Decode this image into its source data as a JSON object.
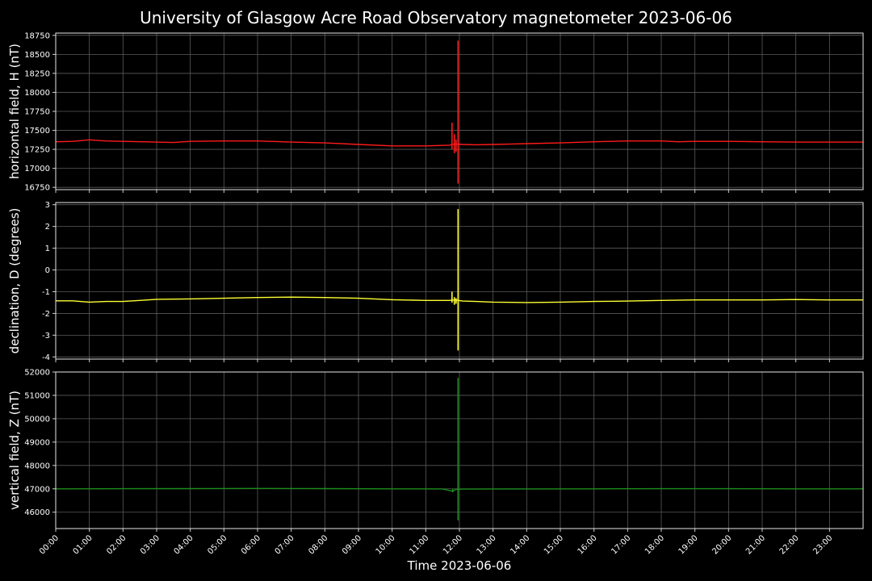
{
  "chart_data": {
    "type": "line",
    "title": "University of Glasgow Acre Road Observatory magnetometer 2023-06-06",
    "xlabel": "Time 2023-06-06",
    "x_ticks": [
      "00:00",
      "01:00",
      "02:00",
      "03:00",
      "04:00",
      "05:00",
      "06:00",
      "07:00",
      "08:00",
      "09:00",
      "10:00",
      "11:00",
      "12:00",
      "13:00",
      "14:00",
      "15:00",
      "16:00",
      "17:00",
      "18:00",
      "19:00",
      "20:00",
      "21:00",
      "22:00",
      "23:00"
    ],
    "xlim_hours": [
      0,
      24
    ],
    "grid": true,
    "panels": [
      {
        "ylabel": "horizontal field, H (nT)",
        "color": "#ff1a1a",
        "ylim": [
          16720,
          18780
        ],
        "yticks": [
          16750,
          17000,
          17250,
          17500,
          17750,
          18000,
          18250,
          18500,
          18750
        ],
        "baseline": [
          [
            0,
            17350
          ],
          [
            0.5,
            17355
          ],
          [
            1,
            17375
          ],
          [
            1.5,
            17360
          ],
          [
            2,
            17355
          ],
          [
            3,
            17345
          ],
          [
            3.5,
            17340
          ],
          [
            4,
            17355
          ],
          [
            5,
            17360
          ],
          [
            6,
            17360
          ],
          [
            7,
            17345
          ],
          [
            8,
            17335
          ],
          [
            9,
            17315
          ],
          [
            10,
            17295
          ],
          [
            11,
            17295
          ],
          [
            11.7,
            17305
          ],
          [
            11.85,
            17320
          ],
          [
            12.1,
            17315
          ],
          [
            12.5,
            17310
          ],
          [
            13,
            17315
          ],
          [
            14,
            17325
          ],
          [
            15,
            17335
          ],
          [
            16,
            17350
          ],
          [
            17,
            17360
          ],
          [
            18,
            17360
          ],
          [
            18.5,
            17350
          ],
          [
            19,
            17355
          ],
          [
            20,
            17355
          ],
          [
            21,
            17350
          ],
          [
            22,
            17345
          ],
          [
            23,
            17345
          ],
          [
            24,
            17345
          ]
        ],
        "spikes": [
          [
            11.78,
            17250,
            17600
          ],
          [
            11.85,
            17200,
            17450
          ],
          [
            11.9,
            17220,
            17380
          ],
          [
            11.96,
            16800,
            18680
          ]
        ]
      },
      {
        "ylabel": "declination, D (degrees)",
        "color": "#ffff33",
        "ylim": [
          -4.1,
          3.1
        ],
        "yticks": [
          -4,
          -3,
          -2,
          -1,
          0,
          1,
          2,
          3
        ],
        "baseline": [
          [
            0,
            -1.42
          ],
          [
            0.5,
            -1.42
          ],
          [
            1,
            -1.48
          ],
          [
            1.5,
            -1.45
          ],
          [
            2,
            -1.45
          ],
          [
            2.5,
            -1.4
          ],
          [
            3,
            -1.35
          ],
          [
            4,
            -1.33
          ],
          [
            5,
            -1.3
          ],
          [
            6,
            -1.27
          ],
          [
            7,
            -1.25
          ],
          [
            8,
            -1.27
          ],
          [
            9,
            -1.3
          ],
          [
            10,
            -1.37
          ],
          [
            11,
            -1.4
          ],
          [
            11.7,
            -1.4
          ],
          [
            11.85,
            -1.38
          ],
          [
            12.1,
            -1.43
          ],
          [
            12.5,
            -1.45
          ],
          [
            13,
            -1.48
          ],
          [
            14,
            -1.5
          ],
          [
            15,
            -1.48
          ],
          [
            16,
            -1.45
          ],
          [
            17,
            -1.43
          ],
          [
            18,
            -1.4
          ],
          [
            19,
            -1.38
          ],
          [
            20,
            -1.38
          ],
          [
            21,
            -1.38
          ],
          [
            22,
            -1.36
          ],
          [
            23,
            -1.38
          ],
          [
            24,
            -1.38
          ]
        ],
        "spikes": [
          [
            11.78,
            -1.5,
            -1.0
          ],
          [
            11.85,
            -1.6,
            -1.25
          ],
          [
            11.9,
            -1.55,
            -1.3
          ],
          [
            11.96,
            -3.7,
            2.8
          ]
        ]
      },
      {
        "ylabel": "vertical field, Z (nT)",
        "color": "#1a8c1a",
        "ylim": [
          45300,
          52000
        ],
        "yticks": [
          46000,
          47000,
          48000,
          49000,
          50000,
          51000,
          52000
        ],
        "baseline": [
          [
            0,
            47000
          ],
          [
            2,
            47005
          ],
          [
            4,
            47010
          ],
          [
            6,
            47015
          ],
          [
            8,
            47010
          ],
          [
            10,
            47000
          ],
          [
            11.5,
            46995
          ],
          [
            11.8,
            46900
          ],
          [
            11.9,
            46980
          ],
          [
            12.1,
            46990
          ],
          [
            14,
            46995
          ],
          [
            16,
            47000
          ],
          [
            18,
            47005
          ],
          [
            20,
            47005
          ],
          [
            22,
            47000
          ],
          [
            24,
            47000
          ]
        ],
        "spikes": [
          [
            11.8,
            46850,
            47000
          ],
          [
            11.96,
            45650,
            51750
          ]
        ]
      }
    ]
  }
}
